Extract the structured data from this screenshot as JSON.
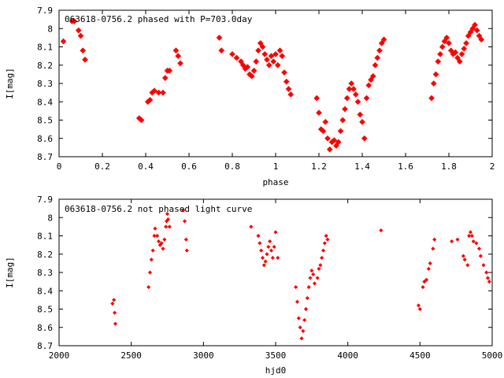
{
  "chart_data": [
    {
      "type": "scatter",
      "title": "063618-0756.2 phased with P=703.0day",
      "xlabel": "phase",
      "ylabel": "I[mag]",
      "xlim": [
        0,
        2
      ],
      "ylim": [
        7.9,
        8.7
      ],
      "y_inverted": true,
      "grid": false,
      "color": "#ff0000",
      "xticks": [
        "0",
        "0.2",
        "0.4",
        "0.6",
        "0.8",
        "1",
        "1.2",
        "1.4",
        "1.6",
        "1.8",
        "2"
      ],
      "yticks": [
        "7.9",
        "8",
        "8.1",
        "8.2",
        "8.3",
        "8.4",
        "8.5",
        "8.6",
        "8.7"
      ],
      "points": [
        [
          0.02,
          8.07
        ],
        [
          0.06,
          7.96
        ],
        [
          0.07,
          7.96
        ],
        [
          0.09,
          8.01
        ],
        [
          0.1,
          8.04
        ],
        [
          0.11,
          8.12
        ],
        [
          0.12,
          8.17
        ],
        [
          0.37,
          8.49
        ],
        [
          0.38,
          8.5
        ],
        [
          0.41,
          8.4
        ],
        [
          0.42,
          8.39
        ],
        [
          0.43,
          8.35
        ],
        [
          0.44,
          8.34
        ],
        [
          0.46,
          8.35
        ],
        [
          0.48,
          8.35
        ],
        [
          0.49,
          8.27
        ],
        [
          0.5,
          8.23
        ],
        [
          0.51,
          8.23
        ],
        [
          0.54,
          8.12
        ],
        [
          0.55,
          8.15
        ],
        [
          0.56,
          8.19
        ],
        [
          0.74,
          8.05
        ],
        [
          0.75,
          8.12
        ],
        [
          0.8,
          8.14
        ],
        [
          0.82,
          8.16
        ],
        [
          0.84,
          8.18
        ],
        [
          0.85,
          8.2
        ],
        [
          0.86,
          8.22
        ],
        [
          0.87,
          8.21
        ],
        [
          0.88,
          8.25
        ],
        [
          0.89,
          8.26
        ],
        [
          0.9,
          8.23
        ],
        [
          0.91,
          8.18
        ],
        [
          0.92,
          8.12
        ],
        [
          0.93,
          8.08
        ],
        [
          0.94,
          8.1
        ],
        [
          0.95,
          8.14
        ],
        [
          0.96,
          8.17
        ],
        [
          0.97,
          8.2
        ],
        [
          0.98,
          8.15
        ],
        [
          0.99,
          8.18
        ],
        [
          1.0,
          8.14
        ],
        [
          1.01,
          8.2
        ],
        [
          1.02,
          8.12
        ],
        [
          1.03,
          8.15
        ],
        [
          1.04,
          8.24
        ],
        [
          1.05,
          8.29
        ],
        [
          1.06,
          8.33
        ],
        [
          1.07,
          8.36
        ],
        [
          1.19,
          8.38
        ],
        [
          1.2,
          8.46
        ],
        [
          1.21,
          8.55
        ],
        [
          1.22,
          8.56
        ],
        [
          1.23,
          8.51
        ],
        [
          1.24,
          8.6
        ],
        [
          1.25,
          8.66
        ],
        [
          1.26,
          8.62
        ],
        [
          1.27,
          8.61
        ],
        [
          1.28,
          8.64
        ],
        [
          1.29,
          8.62
        ],
        [
          1.3,
          8.56
        ],
        [
          1.31,
          8.5
        ],
        [
          1.32,
          8.44
        ],
        [
          1.33,
          8.38
        ],
        [
          1.34,
          8.33
        ],
        [
          1.35,
          8.3
        ],
        [
          1.36,
          8.33
        ],
        [
          1.37,
          8.36
        ],
        [
          1.38,
          8.4
        ],
        [
          1.39,
          8.47
        ],
        [
          1.4,
          8.51
        ],
        [
          1.41,
          8.6
        ],
        [
          1.42,
          8.38
        ],
        [
          1.43,
          8.31
        ],
        [
          1.44,
          8.28
        ],
        [
          1.45,
          8.26
        ],
        [
          1.46,
          8.2
        ],
        [
          1.47,
          8.16
        ],
        [
          1.48,
          8.12
        ],
        [
          1.49,
          8.08
        ],
        [
          1.5,
          8.06
        ],
        [
          1.72,
          8.38
        ],
        [
          1.73,
          8.3
        ],
        [
          1.74,
          8.25
        ],
        [
          1.75,
          8.18
        ],
        [
          1.76,
          8.14
        ],
        [
          1.77,
          8.1
        ],
        [
          1.78,
          8.07
        ],
        [
          1.79,
          8.05
        ],
        [
          1.8,
          8.08
        ],
        [
          1.81,
          8.12
        ],
        [
          1.82,
          8.14
        ],
        [
          1.83,
          8.13
        ],
        [
          1.84,
          8.16
        ],
        [
          1.85,
          8.18
        ],
        [
          1.86,
          8.14
        ],
        [
          1.87,
          8.11
        ],
        [
          1.88,
          8.08
        ],
        [
          1.89,
          8.04
        ],
        [
          1.9,
          8.02
        ],
        [
          1.91,
          8.0
        ],
        [
          1.92,
          7.98
        ],
        [
          1.93,
          8.01
        ],
        [
          1.94,
          8.04
        ],
        [
          1.95,
          8.06
        ]
      ]
    },
    {
      "type": "scatter",
      "title": "063618-0756.2 not phased light curve",
      "xlabel": "hjd0",
      "ylabel": "I[mag]",
      "xlim": [
        2000,
        5000
      ],
      "ylim": [
        7.9,
        8.7
      ],
      "y_inverted": true,
      "grid": false,
      "color": "#ff0000",
      "xticks": [
        "2000",
        "2500",
        "3000",
        "3500",
        "4000",
        "4500",
        "5000"
      ],
      "yticks": [
        "7.9",
        "8",
        "8.1",
        "8.2",
        "8.3",
        "8.4",
        "8.5",
        "8.6",
        "8.7"
      ],
      "points": [
        [
          2370,
          8.47
        ],
        [
          2380,
          8.45
        ],
        [
          2385,
          8.52
        ],
        [
          2390,
          8.58
        ],
        [
          2620,
          8.38
        ],
        [
          2630,
          8.3
        ],
        [
          2640,
          8.23
        ],
        [
          2650,
          8.18
        ],
        [
          2660,
          8.1
        ],
        [
          2665,
          8.06
        ],
        [
          2680,
          8.1
        ],
        [
          2690,
          8.13
        ],
        [
          2700,
          8.15
        ],
        [
          2710,
          8.14
        ],
        [
          2720,
          8.17
        ],
        [
          2730,
          8.12
        ],
        [
          2740,
          8.05
        ],
        [
          2745,
          8.02
        ],
        [
          2750,
          7.98
        ],
        [
          2755,
          8.01
        ],
        [
          2765,
          8.05
        ],
        [
          2860,
          7.96
        ],
        [
          2870,
          8.02
        ],
        [
          2880,
          8.12
        ],
        [
          2885,
          8.18
        ],
        [
          3330,
          8.05
        ],
        [
          3380,
          8.1
        ],
        [
          3390,
          8.14
        ],
        [
          3400,
          8.18
        ],
        [
          3410,
          8.22
        ],
        [
          3420,
          8.26
        ],
        [
          3430,
          8.24
        ],
        [
          3440,
          8.2
        ],
        [
          3450,
          8.16
        ],
        [
          3460,
          8.13
        ],
        [
          3470,
          8.18
        ],
        [
          3480,
          8.22
        ],
        [
          3490,
          8.16
        ],
        [
          3500,
          8.08
        ],
        [
          3515,
          8.22
        ],
        [
          3640,
          8.38
        ],
        [
          3650,
          8.46
        ],
        [
          3660,
          8.55
        ],
        [
          3670,
          8.6
        ],
        [
          3680,
          8.66
        ],
        [
          3690,
          8.62
        ],
        [
          3700,
          8.56
        ],
        [
          3710,
          8.5
        ],
        [
          3720,
          8.44
        ],
        [
          3730,
          8.38
        ],
        [
          3740,
          8.33
        ],
        [
          3750,
          8.29
        ],
        [
          3760,
          8.31
        ],
        [
          3770,
          8.36
        ],
        [
          3790,
          8.33
        ],
        [
          3800,
          8.28
        ],
        [
          3810,
          8.26
        ],
        [
          3820,
          8.22
        ],
        [
          3830,
          8.18
        ],
        [
          3840,
          8.14
        ],
        [
          3850,
          8.1
        ],
        [
          3860,
          8.12
        ],
        [
          4230,
          8.07
        ],
        [
          4490,
          8.48
        ],
        [
          4500,
          8.5
        ],
        [
          4520,
          8.38
        ],
        [
          4530,
          8.35
        ],
        [
          4545,
          8.34
        ],
        [
          4560,
          8.28
        ],
        [
          4570,
          8.25
        ],
        [
          4590,
          8.17
        ],
        [
          4600,
          8.12
        ],
        [
          4720,
          8.13
        ],
        [
          4760,
          8.12
        ],
        [
          4800,
          8.21
        ],
        [
          4810,
          8.23
        ],
        [
          4830,
          8.26
        ],
        [
          4840,
          8.1
        ],
        [
          4850,
          8.08
        ],
        [
          4860,
          8.1
        ],
        [
          4870,
          8.13
        ],
        [
          4890,
          8.14
        ],
        [
          4910,
          8.17
        ],
        [
          4920,
          8.21
        ],
        [
          4940,
          8.26
        ],
        [
          4960,
          8.3
        ],
        [
          4970,
          8.33
        ],
        [
          4980,
          8.35
        ]
      ]
    }
  ]
}
